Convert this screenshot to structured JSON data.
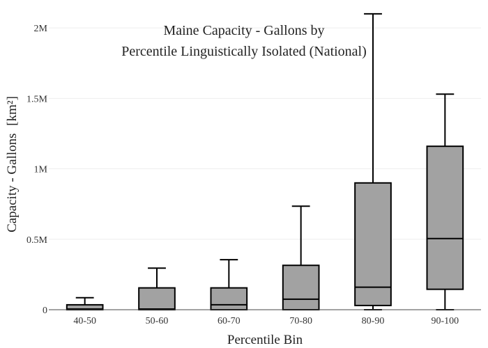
{
  "chart_data": {
    "type": "box",
    "title_lines": [
      "Maine Capacity - Gallons by",
      "Percentile Linguistically Isolated (National)"
    ],
    "xlabel": "Percentile Bin",
    "ylabel": "Capacity - Gallons",
    "ylabel_unit": "[km²]",
    "ylim": [
      0,
      2050000
    ],
    "yticks": [
      0,
      500000,
      1000000,
      1500000,
      2000000
    ],
    "ytick_labels": [
      "0",
      "0.5M",
      "1M",
      "1.5M",
      "2M"
    ],
    "grid": true,
    "box_fill": "#a2a2a2",
    "box_stroke": "#000000",
    "categories": [
      "40-50",
      "50-60",
      "60-70",
      "70-80",
      "80-90",
      "90-100"
    ],
    "boxes": [
      {
        "category": "40-50",
        "min": 0,
        "q1": 0,
        "median": 5000,
        "q3": 35000,
        "max": 85000
      },
      {
        "category": "50-60",
        "min": 0,
        "q1": 0,
        "median": 5000,
        "q3": 155000,
        "max": 295000
      },
      {
        "category": "60-70",
        "min": 0,
        "q1": 0,
        "median": 35000,
        "q3": 155000,
        "max": 355000
      },
      {
        "category": "70-80",
        "min": 0,
        "q1": 0,
        "median": 75000,
        "q3": 315000,
        "max": 735000
      },
      {
        "category": "80-90",
        "min": 0,
        "q1": 30000,
        "median": 160000,
        "q3": 900000,
        "max": 2100000
      },
      {
        "category": "90-100",
        "min": 0,
        "q1": 145000,
        "median": 505000,
        "q3": 1160000,
        "max": 1530000
      }
    ]
  }
}
